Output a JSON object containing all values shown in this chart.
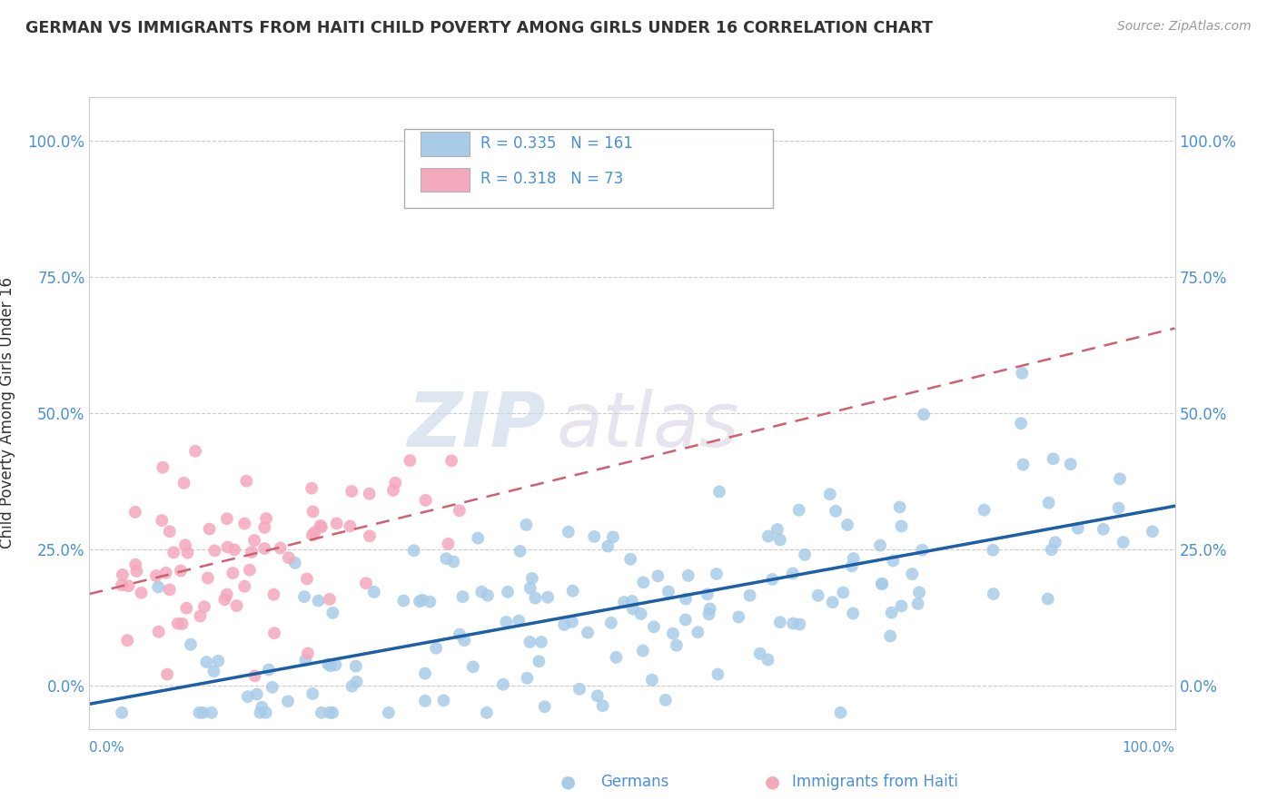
{
  "title": "GERMAN VS IMMIGRANTS FROM HAITI CHILD POVERTY AMONG GIRLS UNDER 16 CORRELATION CHART",
  "source": "Source: ZipAtlas.com",
  "ylabel": "Child Poverty Among Girls Under 16",
  "xlim": [
    0,
    1
  ],
  "ylim": [
    -0.08,
    1.08
  ],
  "yticks": [
    0.0,
    0.25,
    0.5,
    0.75,
    1.0
  ],
  "ytick_labels": [
    "0.0%",
    "25.0%",
    "50.0%",
    "75.0%",
    "100.0%"
  ],
  "xtick_labels": [
    "0.0%",
    "100.0%"
  ],
  "legend_r1": "R = 0.335",
  "legend_n1": "N = 161",
  "legend_r2": "R = 0.318",
  "legend_n2": "N = 73",
  "legend_label1": "Germans",
  "legend_label2": "Immigrants from Haiti",
  "color_blue": "#a8cce8",
  "color_pink": "#f4a8bc",
  "color_blue_line": "#1a5fa8",
  "color_pink_line": "#d06070",
  "watermark_zip": "ZIP",
  "watermark_atlas": "atlas",
  "background_color": "#ffffff",
  "grid_color": "#cccccc",
  "title_color": "#333333",
  "source_color": "#999999",
  "tick_color": "#4a90d9",
  "seed": 12345,
  "n_blue": 161,
  "n_pink": 73
}
